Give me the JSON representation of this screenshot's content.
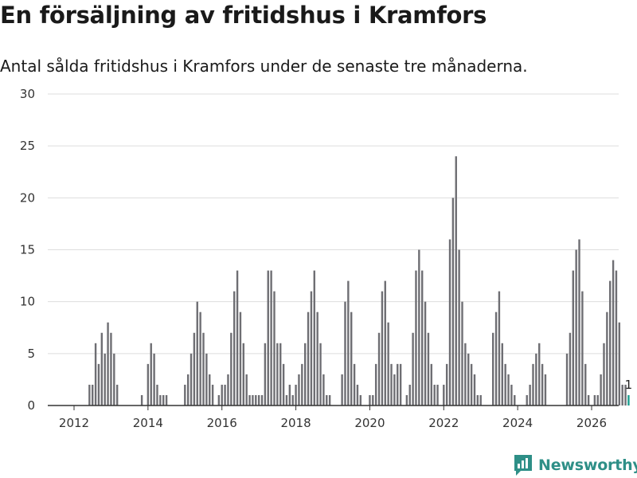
{
  "title": "En försäljning av fritidshus i Kramfors",
  "subtitle": "Antal sålda fritidshus i Kramfors under de senaste tre månaderna.",
  "brand": {
    "name": "Newsworthy",
    "icon": "newsworthy-logo-icon",
    "color": "#2e8f87"
  },
  "colors": {
    "bar": "#6e6e73",
    "highlight": "#1a9e8f",
    "grid": "#dddddd",
    "axis": "#333333"
  },
  "chart_data": {
    "type": "bar",
    "title": "En försäljning av fritidshus i Kramfors",
    "xlabel": "",
    "ylabel": "",
    "ylim": [
      0,
      30
    ],
    "yticks": [
      0,
      5,
      10,
      15,
      20,
      25,
      30
    ],
    "xticks": [
      "2012",
      "2014",
      "2016",
      "2018",
      "2020",
      "2022",
      "2024",
      "2026"
    ],
    "start": "2012-01",
    "grid": true,
    "values": [
      0,
      0,
      0,
      0,
      0,
      2,
      2,
      6,
      4,
      7,
      5,
      8,
      7,
      5,
      2,
      0,
      0,
      0,
      0,
      0,
      0,
      0,
      1,
      0,
      4,
      6,
      5,
      2,
      1,
      1,
      1,
      0,
      0,
      0,
      0,
      0,
      2,
      3,
      5,
      7,
      10,
      9,
      7,
      5,
      3,
      2,
      0,
      1,
      2,
      2,
      3,
      7,
      11,
      13,
      9,
      6,
      3,
      1,
      1,
      1,
      1,
      1,
      6,
      13,
      13,
      11,
      6,
      6,
      4,
      1,
      2,
      1,
      2,
      3,
      4,
      6,
      9,
      11,
      13,
      9,
      6,
      3,
      1,
      1,
      0,
      0,
      0,
      3,
      10,
      12,
      9,
      4,
      2,
      1,
      0,
      0,
      1,
      1,
      4,
      7,
      11,
      12,
      8,
      4,
      3,
      4,
      4,
      0,
      1,
      2,
      7,
      13,
      15,
      13,
      10,
      7,
      4,
      2,
      2,
      0,
      2,
      4,
      16,
      20,
      24,
      15,
      10,
      6,
      5,
      4,
      3,
      1,
      1,
      0,
      0,
      0,
      7,
      9,
      11,
      6,
      4,
      3,
      2,
      1,
      0,
      0,
      0,
      1,
      2,
      4,
      5,
      6,
      4,
      3,
      0,
      0,
      0,
      0,
      0,
      0,
      5,
      7,
      13,
      15,
      16,
      11,
      4,
      1,
      0,
      1,
      1,
      3,
      6,
      9,
      12,
      14,
      13,
      8,
      2,
      2,
      1
    ],
    "highlight_last": true,
    "data_labels": [
      {
        "index": "last",
        "text": "1"
      }
    ]
  }
}
